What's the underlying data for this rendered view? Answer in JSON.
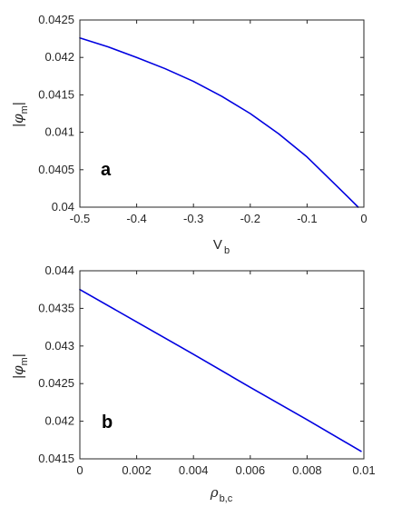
{
  "chart_data": [
    {
      "type": "line",
      "panel_label": "a",
      "xlabel": {
        "main": "V",
        "sub": "b"
      },
      "ylabel": {
        "pre": "|",
        "symbol": "φ",
        "sub": "m",
        "post": "|"
      },
      "xlim": [
        -0.5,
        0
      ],
      "ylim": [
        0.04,
        0.0425
      ],
      "xticks": [
        -0.5,
        -0.4,
        -0.3,
        -0.2,
        -0.1,
        0
      ],
      "xtick_labels": [
        "-0.5",
        "-0.4",
        "-0.3",
        "-0.2",
        "-0.1",
        "0"
      ],
      "yticks": [
        0.04,
        0.0405,
        0.041,
        0.0415,
        0.042,
        0.0425
      ],
      "ytick_labels": [
        "0.04",
        "0.0405",
        "0.041",
        "0.0415",
        "0.042",
        "0.0425"
      ],
      "grid": false,
      "line_color": "#0000e0",
      "series": [
        {
          "x": [
            -0.5,
            -0.45,
            -0.4,
            -0.35,
            -0.3,
            -0.25,
            -0.2,
            -0.15,
            -0.1,
            -0.05,
            -0.01
          ],
          "y": [
            0.04226,
            0.04214,
            0.042,
            0.04185,
            0.04168,
            0.04148,
            0.04125,
            0.04098,
            0.04067,
            0.0403,
            0.04
          ]
        }
      ]
    },
    {
      "type": "line",
      "panel_label": "b",
      "xlabel": {
        "main": "ρ",
        "sub": "b,c"
      },
      "ylabel": {
        "pre": "|",
        "symbol": "φ",
        "sub": "m",
        "post": "|"
      },
      "xlim": [
        0,
        0.01
      ],
      "ylim": [
        0.0415,
        0.044
      ],
      "xticks": [
        0,
        0.002,
        0.004,
        0.006,
        0.008,
        0.01
      ],
      "xtick_labels": [
        "0",
        "0.002",
        "0.004",
        "0.006",
        "0.008",
        "0.01"
      ],
      "yticks": [
        0.0415,
        0.042,
        0.0425,
        0.043,
        0.0435,
        0.044
      ],
      "ytick_labels": [
        "0.0415",
        "0.042",
        "0.0425",
        "0.043",
        "0.0435",
        "0.044"
      ],
      "grid": false,
      "line_color": "#0000e0",
      "series": [
        {
          "x": [
            0,
            0.002,
            0.004,
            0.006,
            0.008,
            0.0099
          ],
          "y": [
            0.04375,
            0.04332,
            0.04289,
            0.04245,
            0.04202,
            0.0416
          ]
        }
      ]
    }
  ]
}
